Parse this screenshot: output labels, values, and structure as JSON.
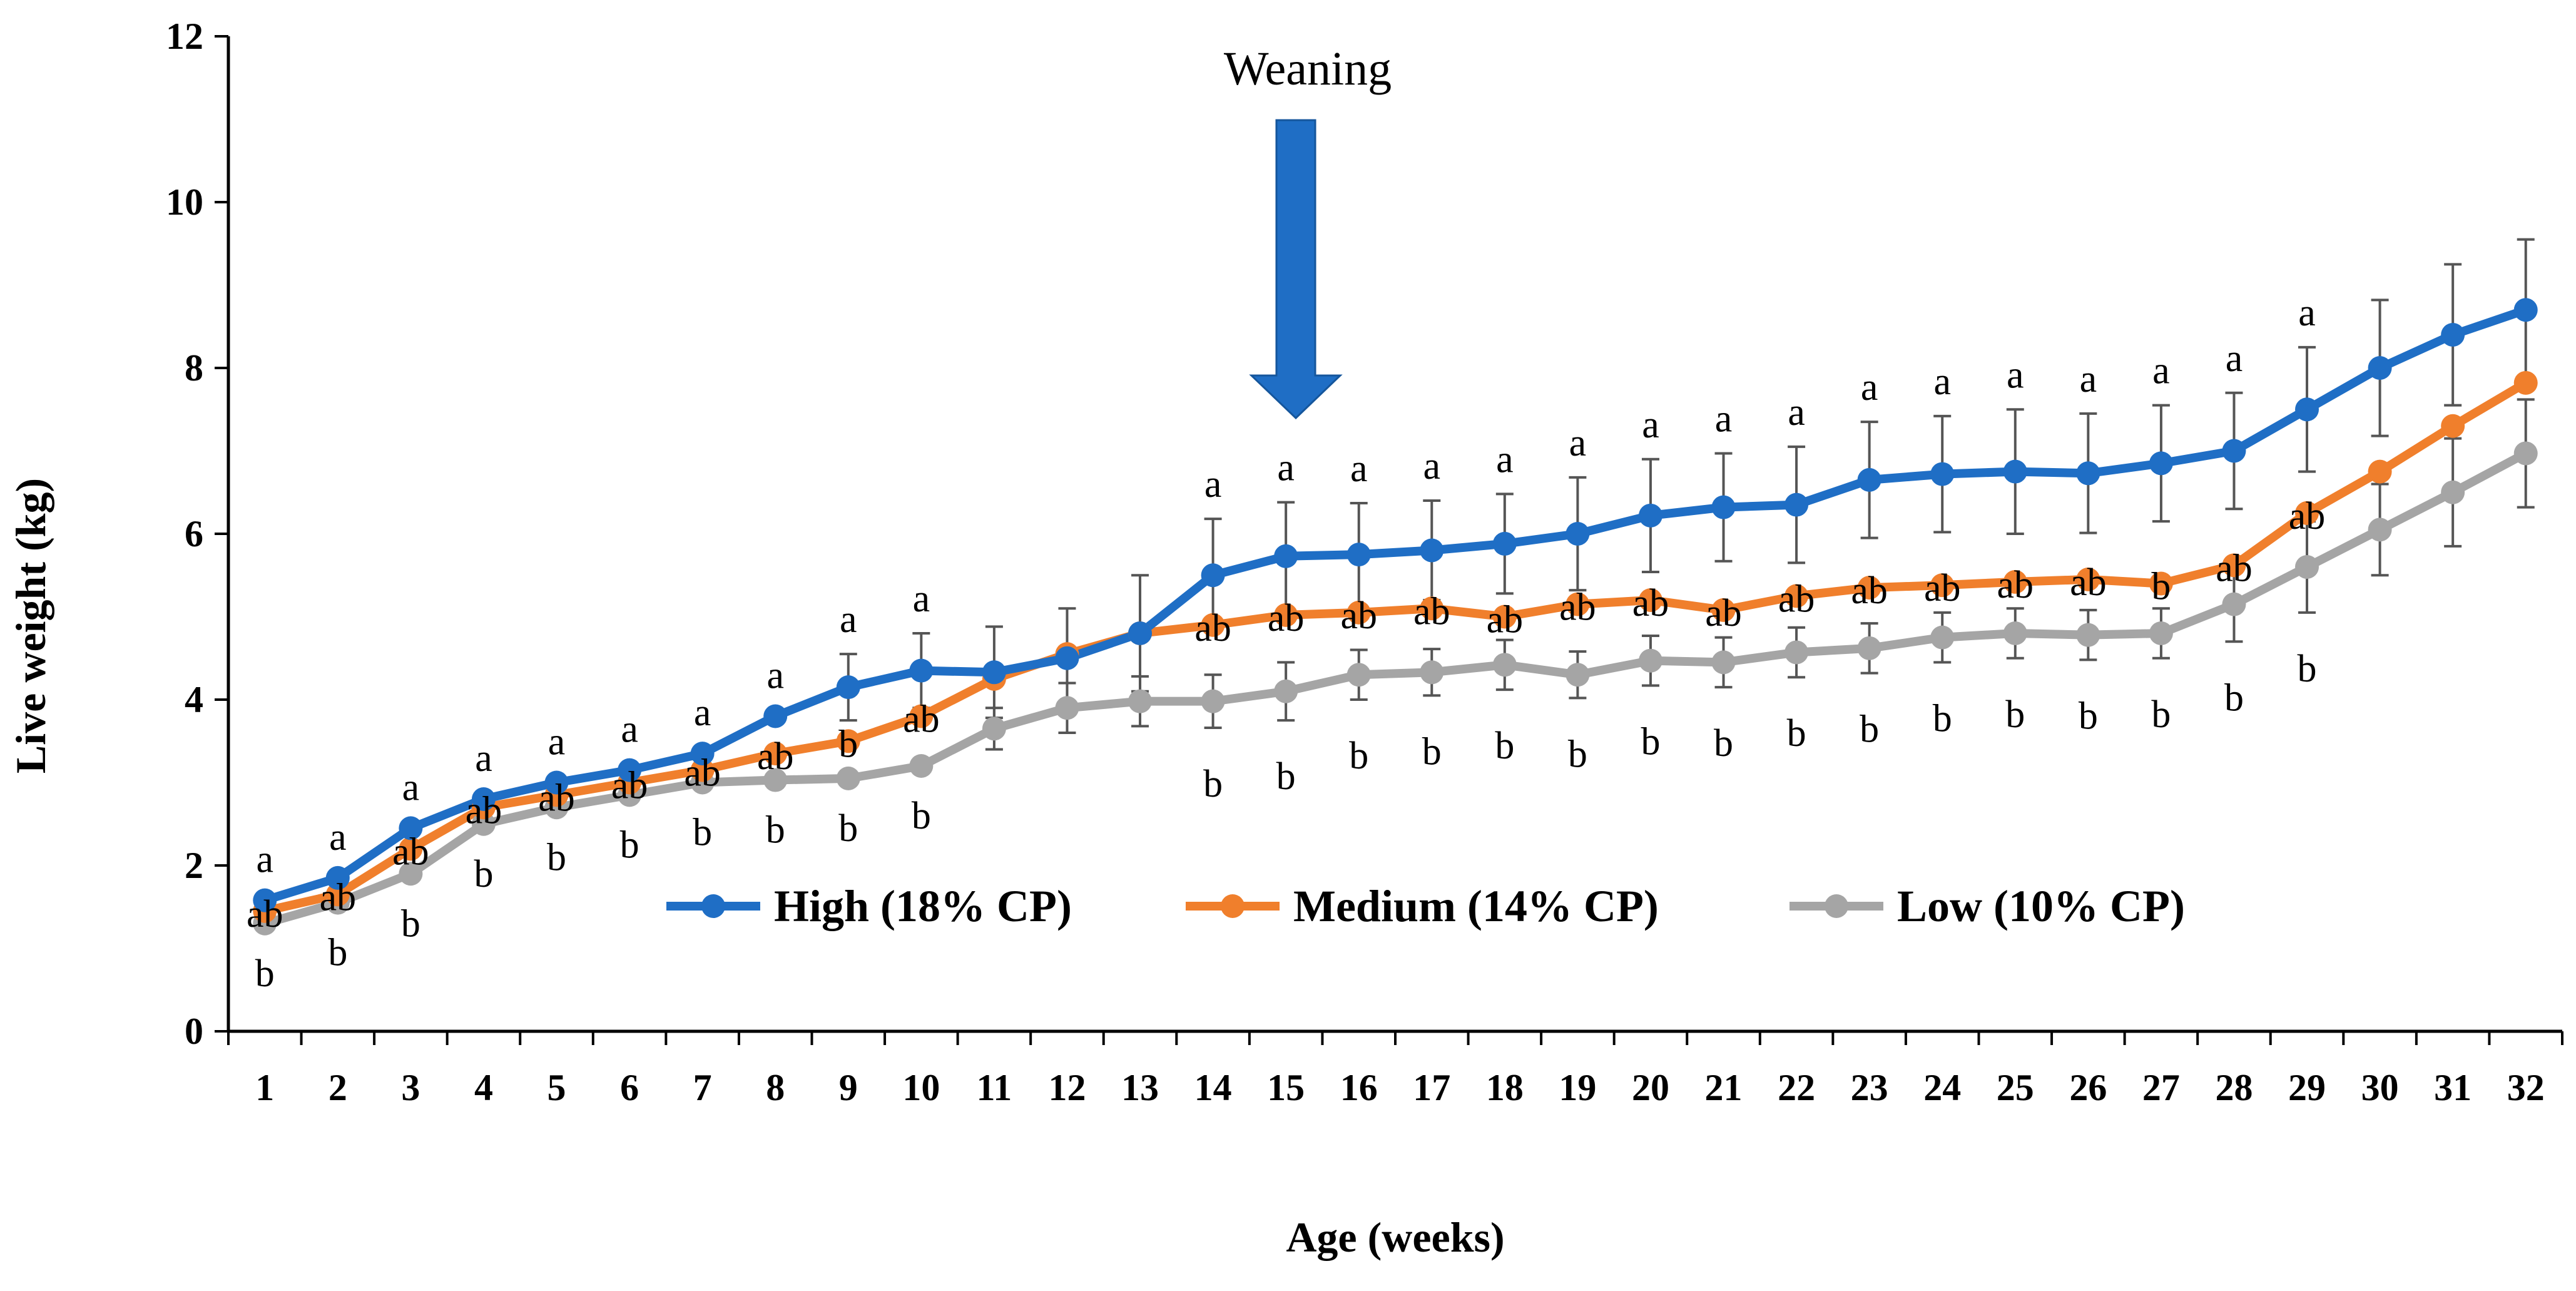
{
  "chart_data": {
    "type": "line",
    "title": "",
    "xlabel": "Age (weeks)",
    "ylabel": "Live weight (kg)",
    "ylim": [
      0,
      12
    ],
    "yticks": [
      "0",
      "2",
      "4",
      "6",
      "8",
      "10",
      "12"
    ],
    "grid": false,
    "legend_position": "center",
    "categories": [
      "1",
      "2",
      "3",
      "4",
      "5",
      "6",
      "7",
      "8",
      "9",
      "10",
      "11",
      "12",
      "13",
      "14",
      "15",
      "16",
      "17",
      "18",
      "19",
      "20",
      "21",
      "22",
      "23",
      "24",
      "25",
      "26",
      "27",
      "28",
      "29",
      "30",
      "31",
      "32"
    ],
    "series": [
      {
        "name": "High (18% CP)",
        "color": "#1f6ec5",
        "values": [
          1.58,
          1.85,
          2.45,
          2.8,
          3.0,
          3.15,
          3.35,
          3.8,
          4.15,
          4.35,
          4.33,
          4.5,
          4.8,
          5.5,
          5.73,
          5.75,
          5.8,
          5.88,
          6.0,
          6.22,
          6.32,
          6.35,
          6.65,
          6.72,
          6.75,
          6.73,
          6.85,
          7.0,
          7.5,
          8.0,
          8.4,
          8.7
        ],
        "error": [
          0,
          0,
          0,
          0,
          0,
          0,
          0,
          0,
          0.4,
          0.45,
          0.55,
          0.6,
          0.7,
          0.68,
          0.65,
          0.62,
          0.6,
          0.6,
          0.68,
          0.68,
          0.65,
          0.7,
          0.7,
          0.7,
          0.75,
          0.72,
          0.7,
          0.7,
          0.75,
          0.82,
          0.85,
          0.85
        ],
        "sig": [
          "a",
          "a",
          "a",
          "a",
          "a",
          "a",
          "a",
          "a",
          "a",
          "a",
          "",
          "",
          "",
          "a",
          "a",
          "a",
          "a",
          "a",
          "a",
          "a",
          "a",
          "a",
          "a",
          "a",
          "a",
          "a",
          "a",
          "a",
          "a",
          "",
          "",
          ""
        ]
      },
      {
        "name": "Medium (14% CP)",
        "color": "#f07f2c",
        "values": [
          1.45,
          1.65,
          2.2,
          2.7,
          2.85,
          3.0,
          3.15,
          3.35,
          3.5,
          3.8,
          4.25,
          4.55,
          4.8,
          4.9,
          5.02,
          5.05,
          5.1,
          5.0,
          5.15,
          5.2,
          5.08,
          5.25,
          5.35,
          5.38,
          5.42,
          5.45,
          5.4,
          5.62,
          6.25,
          6.75,
          7.3,
          7.82
        ],
        "error": [
          0,
          0,
          0,
          0,
          0,
          0,
          0,
          0,
          0,
          0,
          0,
          0,
          0,
          0,
          0,
          0,
          0,
          0,
          0,
          0,
          0,
          0,
          0,
          0,
          0,
          0,
          0,
          0,
          0,
          0,
          0,
          0
        ],
        "sig": [
          "ab",
          "ab",
          "ab",
          "ab",
          "ab",
          "ab",
          "ab",
          "ab",
          "b",
          "ab",
          "",
          "",
          "",
          "ab",
          "ab",
          "ab",
          "ab",
          "ab",
          "ab",
          "ab",
          "ab",
          "ab",
          "ab",
          "ab",
          "ab",
          "ab",
          "b",
          "ab",
          "ab",
          "",
          "",
          ""
        ]
      },
      {
        "name": "Low (10% CP)",
        "color": "#a5a5a5",
        "values": [
          1.3,
          1.55,
          1.9,
          2.5,
          2.7,
          2.85,
          3.0,
          3.03,
          3.05,
          3.2,
          3.65,
          3.9,
          3.98,
          3.98,
          4.1,
          4.3,
          4.33,
          4.42,
          4.3,
          4.47,
          4.45,
          4.57,
          4.62,
          4.75,
          4.8,
          4.78,
          4.8,
          5.15,
          5.6,
          6.05,
          6.5,
          6.97
        ],
        "error": [
          0,
          0,
          0,
          0,
          0,
          0,
          0,
          0,
          0,
          0,
          0.25,
          0.3,
          0.3,
          0.32,
          0.35,
          0.3,
          0.28,
          0.3,
          0.28,
          0.3,
          0.3,
          0.3,
          0.3,
          0.3,
          0.3,
          0.3,
          0.3,
          0.45,
          0.55,
          0.55,
          0.65,
          0.65
        ],
        "sig": [
          "b",
          "b",
          "b",
          "b",
          "b",
          "b",
          "b",
          "b",
          "b",
          "b",
          "",
          "",
          "",
          "b",
          "b",
          "b",
          "b",
          "b",
          "b",
          "b",
          "b",
          "b",
          "b",
          "b",
          "b",
          "b",
          "b",
          "b",
          "b",
          "",
          "",
          ""
        ]
      }
    ],
    "annotations": [
      {
        "text": "Weaning",
        "at_week": "15"
      }
    ]
  }
}
